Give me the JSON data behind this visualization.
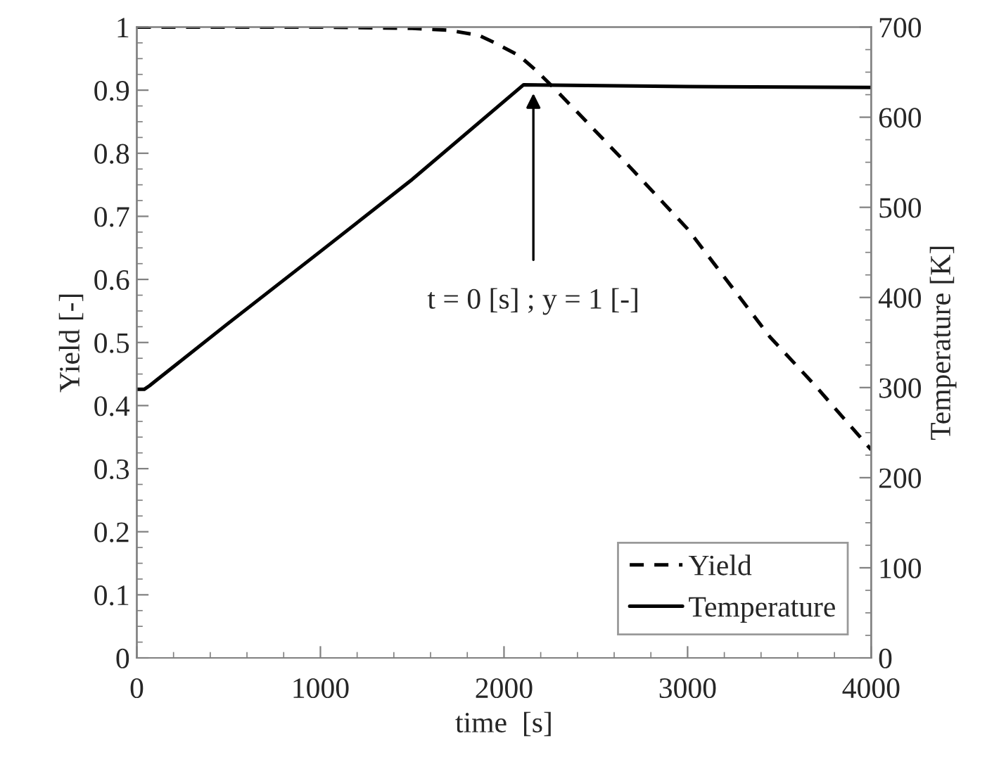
{
  "chart_data": {
    "type": "line",
    "xlabel": "time  [s]",
    "ylabel": "Yield [-]",
    "y2label": "Temperature [K]",
    "series": [
      {
        "name": "Yield",
        "color": "#000000",
        "line_style": "dashed",
        "x": [
          0,
          500,
          1000,
          1500,
          1700,
          1862,
          1950,
          2081,
          2180,
          2273,
          2400,
          2683,
          3000,
          3448,
          3700,
          4000
        ],
        "values": [
          1,
          1,
          1,
          0.998,
          0.995,
          0.987,
          0.975,
          0.955,
          0.93,
          0.903,
          0.865,
          0.779,
          0.68,
          0.509,
          0.43,
          0.33
        ]
      },
      {
        "name": "Temperature",
        "color": "#000000",
        "line_style": "solid",
        "axis": "y2",
        "x": [
          0,
          40,
          69,
          100,
          490,
          1000,
          1500,
          2107,
          3000,
          4000
        ],
        "values": [
          298,
          298,
          302,
          307,
          370,
          451,
          531,
          636,
          634,
          633
        ]
      }
    ],
    "xlim": [
      0,
      4000
    ],
    "xticks": [
      0,
      1000,
      2000,
      3000,
      4000
    ],
    "ylim": [
      0,
      1
    ],
    "yticks": [
      0,
      0.1,
      0.2,
      0.3,
      0.4,
      0.5,
      0.6,
      0.7,
      0.8,
      0.9,
      1
    ],
    "y2lim": [
      0,
      700
    ],
    "y2ticks": [
      0,
      100,
      200,
      300,
      400,
      500,
      600,
      700
    ],
    "annotations": [
      {
        "text": "t = 0 [s] ; y = 1 [-]",
        "x": 2160,
        "y": 0.895
      }
    ],
    "legend": "bottom right",
    "grid": false
  }
}
